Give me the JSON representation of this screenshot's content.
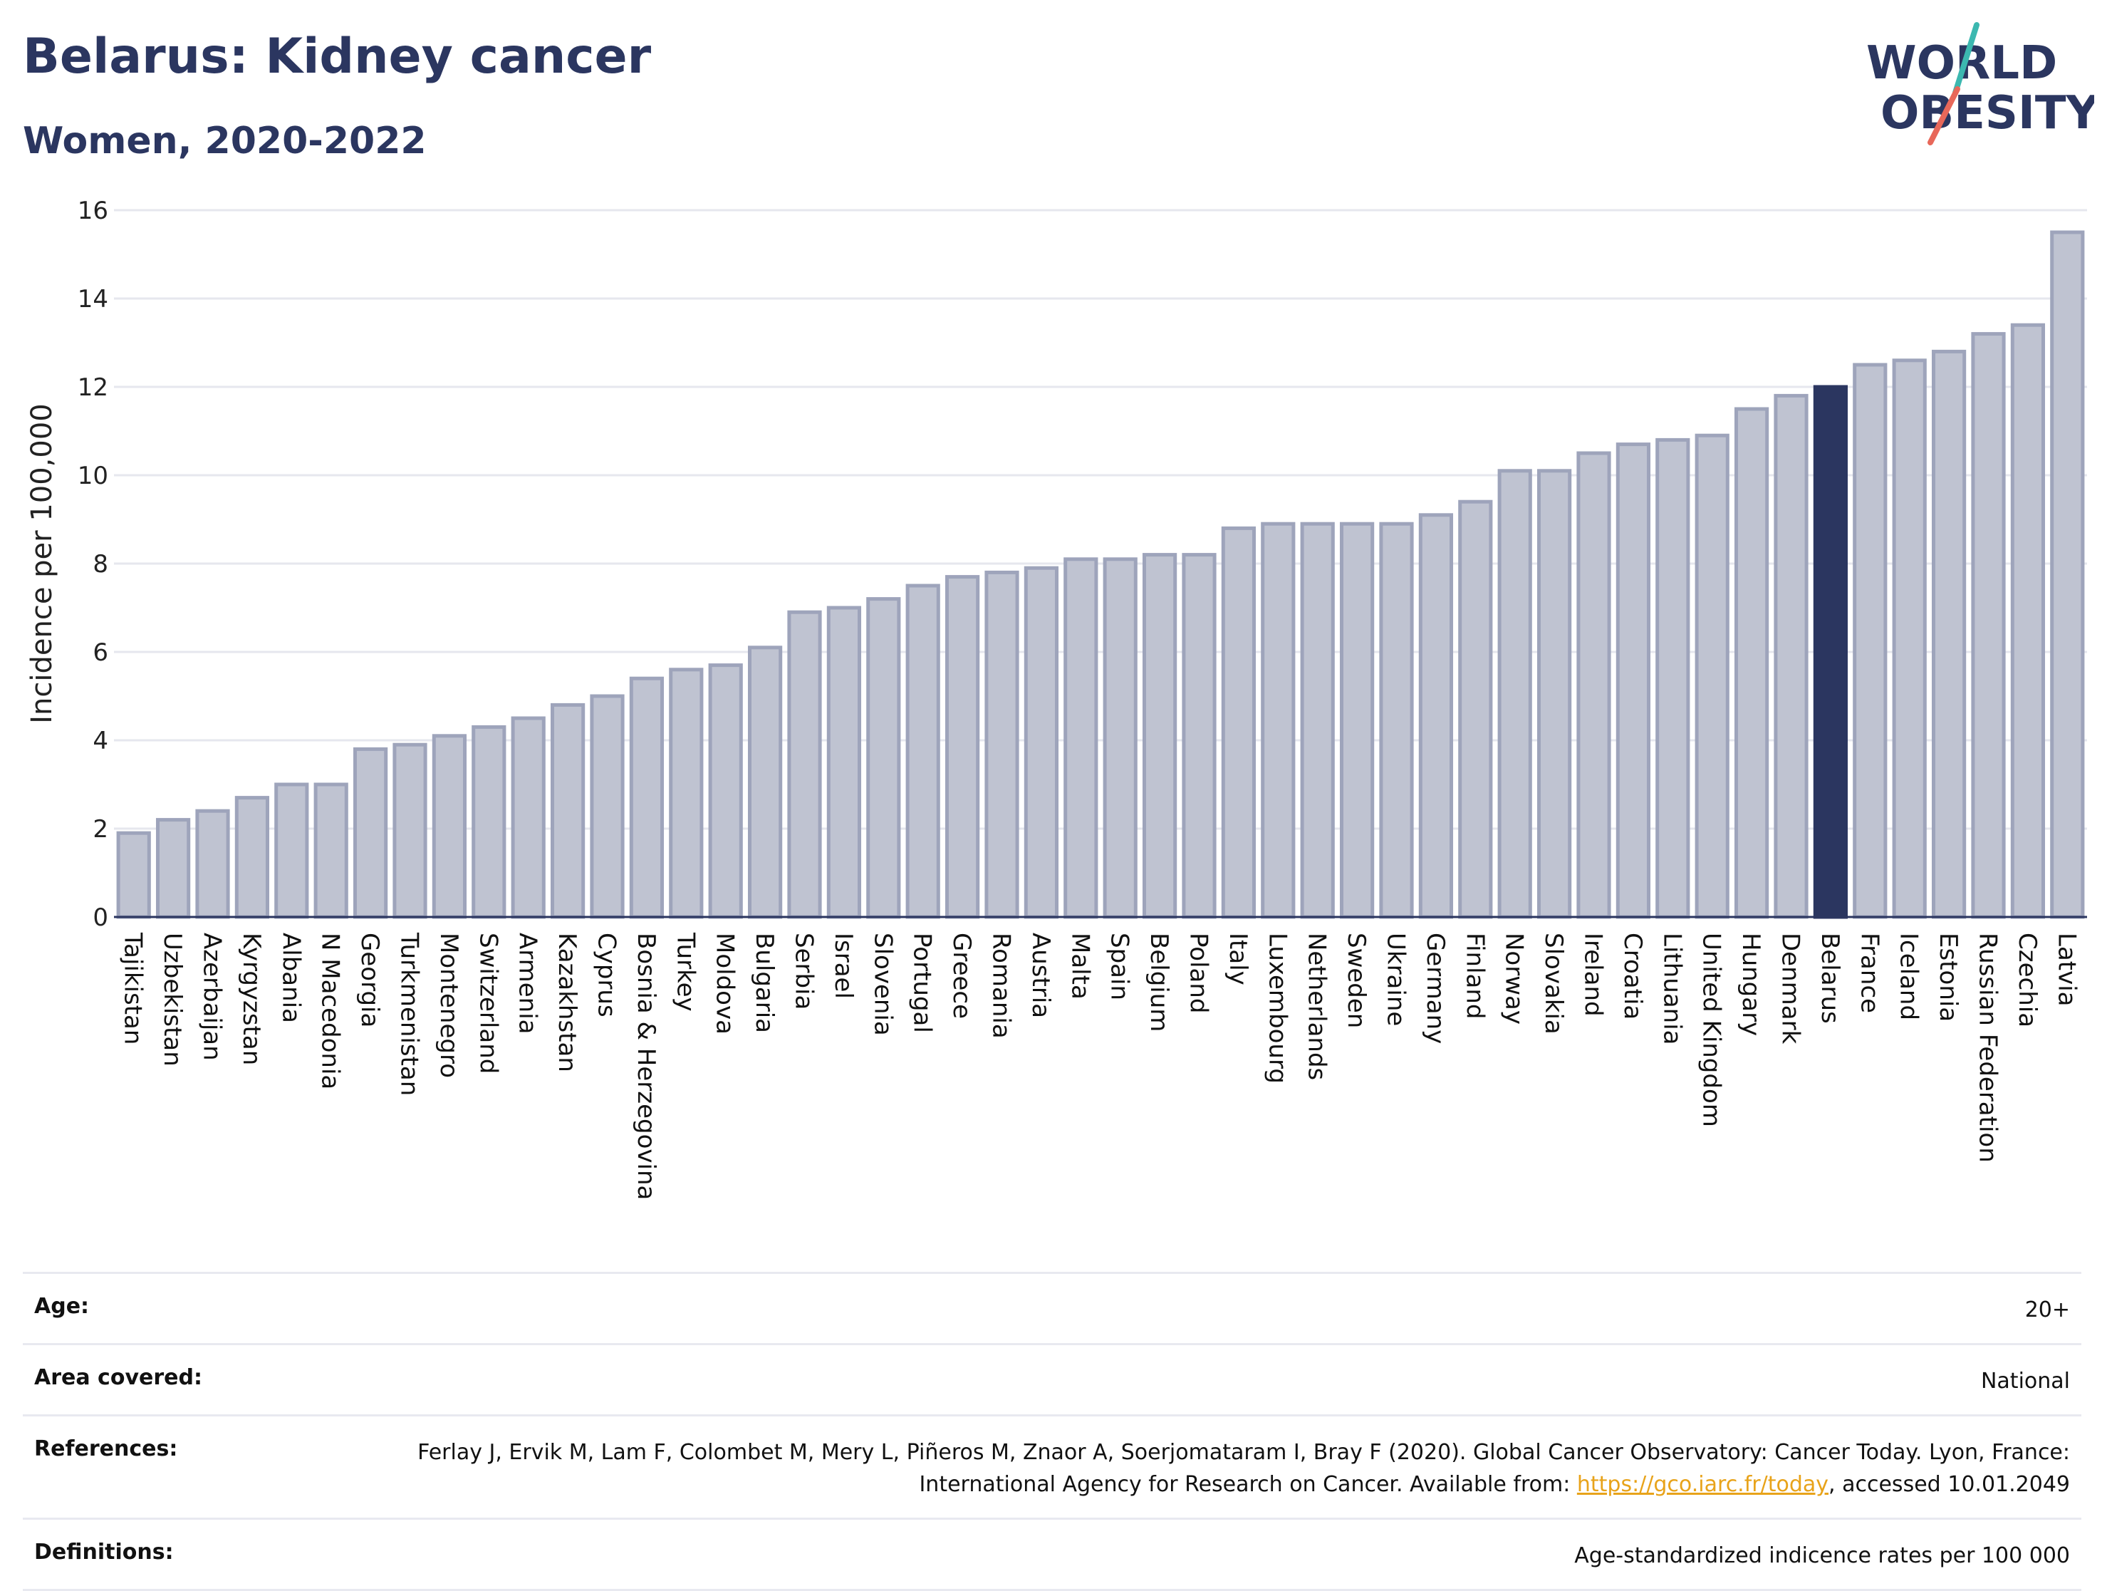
{
  "header": {
    "title": "Belarus: Kidney cancer",
    "subtitle": "Women, 2020-2022"
  },
  "logo": {
    "line1": "WORLD",
    "line2": "OBESITY"
  },
  "colors": {
    "bar": "#bfc3d1",
    "bar_border": "#9ea4bb",
    "highlight": "#2b3660",
    "accent_teal": "#3cb8b0",
    "accent_red": "#e8685a"
  },
  "chart_data": {
    "type": "bar",
    "ylabel": "Incidence per 100,000",
    "ylim": [
      0,
      16
    ],
    "yticks": [
      0,
      2,
      4,
      6,
      8,
      10,
      12,
      14,
      16
    ],
    "grid": true,
    "highlight": "Belarus",
    "categories": [
      "Tajikistan",
      "Uzbekistan",
      "Azerbaijan",
      "Kyrgyzstan",
      "Albania",
      "N Macedonia",
      "Georgia",
      "Turkmenistan",
      "Montenegro",
      "Switzerland",
      "Armenia",
      "Kazakhstan",
      "Cyprus",
      "Bosnia & Herzegovina",
      "Turkey",
      "Moldova",
      "Bulgaria",
      "Serbia",
      "Israel",
      "Slovenia",
      "Portugal",
      "Greece",
      "Romania",
      "Austria",
      "Malta",
      "Spain",
      "Belgium",
      "Poland",
      "Italy",
      "Luxembourg",
      "Netherlands",
      "Sweden",
      "Ukraine",
      "Germany",
      "Finland",
      "Norway",
      "Slovakia",
      "Ireland",
      "Croatia",
      "Lithuania",
      "United Kingdom",
      "Hungary",
      "Denmark",
      "Belarus",
      "France",
      "Iceland",
      "Estonia",
      "Russian Federation",
      "Czechia",
      "Latvia"
    ],
    "values": [
      1.9,
      2.2,
      2.4,
      2.7,
      3.0,
      3.0,
      3.8,
      3.9,
      4.1,
      4.3,
      4.5,
      4.8,
      5.0,
      5.4,
      5.6,
      5.7,
      6.1,
      6.9,
      7.0,
      7.2,
      7.5,
      7.7,
      7.8,
      7.9,
      8.1,
      8.1,
      8.2,
      8.2,
      8.8,
      8.9,
      8.9,
      8.9,
      8.9,
      9.1,
      9.4,
      10.1,
      10.1,
      10.5,
      10.7,
      10.8,
      10.9,
      11.5,
      11.8,
      12.0,
      12.5,
      12.6,
      12.8,
      13.2,
      13.4,
      15.5
    ]
  },
  "info": {
    "age": {
      "label": "Age:",
      "value": "20+"
    },
    "area": {
      "label": "Area covered:",
      "value": "National"
    },
    "references": {
      "label": "References:",
      "text_before": "Ferlay J, Ervik M, Lam F, Colombet M, Mery L, Piñeros M, Znaor A, Soerjomataram I, Bray F (2020). Global Cancer Observatory: Cancer Today. Lyon, France: International Agency for Research on Cancer. Available from: ",
      "link": "https://gco.iarc.fr/today",
      "text_after": ", accessed 10.01.2049"
    },
    "definitions": {
      "label": "Definitions:",
      "value": "Age-standardized indicence rates per 100 000"
    }
  }
}
